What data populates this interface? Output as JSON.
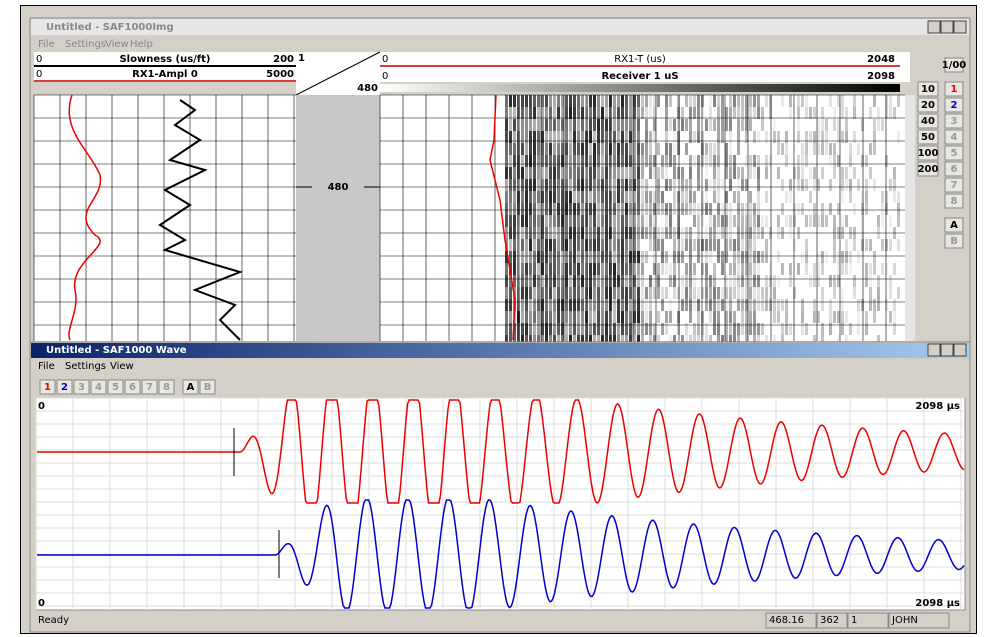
{
  "img_window": {
    "title": "Untitled - SAF1000Img",
    "menu": [
      "File",
      "Settings",
      "View",
      "Help"
    ],
    "tracks": {
      "slowness": {
        "min": "0",
        "label": "Slowness (us/ft)",
        "max": "200"
      },
      "ampl": {
        "min": "0",
        "label": "RX1-Ampl 0",
        "max": "5000"
      },
      "depth_header": {
        "top": "1",
        "bottom": "480"
      },
      "rx1t": {
        "min": "0",
        "label": "RX1-T (us)",
        "max": "2048"
      },
      "receiver": {
        "min": "0",
        "label": "Receiver 1 uS",
        "max": "2098"
      }
    },
    "depth_label": "480",
    "ratio_button": "1/00",
    "scale_buttons": [
      "10",
      "20",
      "40",
      "50",
      "100",
      "200"
    ],
    "receiver_buttons": [
      "1",
      "2",
      "3",
      "4",
      "5",
      "6",
      "7",
      "8"
    ],
    "mode_buttons": [
      "A",
      "B"
    ]
  },
  "wave_window": {
    "title": "Untitled - SAF1000 Wave",
    "menu": [
      "File",
      "Settings",
      "View"
    ],
    "receiver_buttons": [
      "1",
      "2",
      "3",
      "4",
      "5",
      "6",
      "7",
      "8"
    ],
    "mode_buttons": [
      "A",
      "B"
    ],
    "trace_top": {
      "start": "0",
      "end": "2098 µs"
    },
    "trace_bottom": {
      "start": "0",
      "end": "2098 µs"
    }
  },
  "status_bar": {
    "text": "Ready",
    "fields": [
      "468.16",
      "362",
      "1",
      "JOHN"
    ]
  }
}
